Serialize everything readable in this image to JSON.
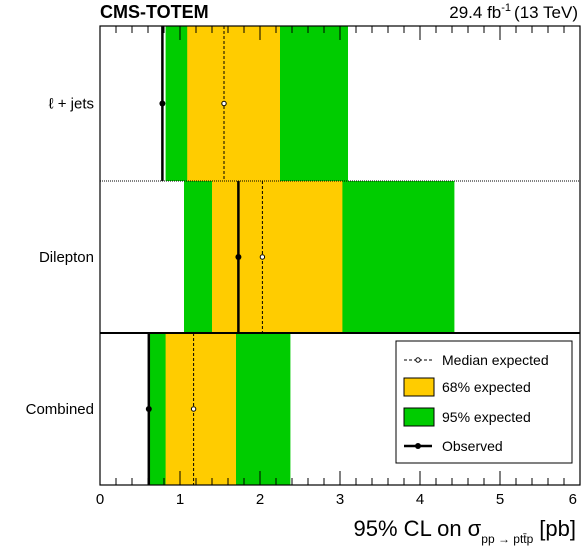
{
  "header": {
    "experiment": "CMS-TOTEM",
    "lumi_value": "29.4 fb",
    "lumi_exp": "-1",
    "lumi_energy": "(13 TeV)"
  },
  "chart_data": {
    "type": "bar",
    "orientation": "horizontal",
    "subtype": "brazil-band limit plot",
    "categories": [
      "ℓ + jets",
      "Dilepton",
      "Combined"
    ],
    "xlabel_main": "95% CL on σ",
    "xlabel_sub": "pp → ptt̄p",
    "xlabel_unit": "[pb]",
    "xlim": [
      0,
      6
    ],
    "xticks": [
      "0",
      "1",
      "2",
      "3",
      "4",
      "5",
      "6"
    ],
    "series": [
      {
        "name": "Median expected",
        "values": [
          1.55,
          2.03,
          1.17
        ]
      },
      {
        "name": "68% expected",
        "low": [
          1.09,
          1.4,
          0.82
        ],
        "high": [
          2.25,
          3.03,
          1.7
        ]
      },
      {
        "name": "95% expected",
        "low": [
          0.82,
          1.05,
          0.61
        ],
        "high": [
          3.1,
          4.43,
          2.38
        ]
      },
      {
        "name": "Observed",
        "values": [
          0.78,
          1.73,
          0.61
        ]
      }
    ],
    "legend": {
      "position": "bottom-right",
      "entries": [
        "Median expected",
        "68% expected",
        "95% expected",
        "Observed"
      ]
    },
    "colors": {
      "band68": "#ffcc00",
      "band95": "#00cc00",
      "line": "#000000"
    }
  }
}
